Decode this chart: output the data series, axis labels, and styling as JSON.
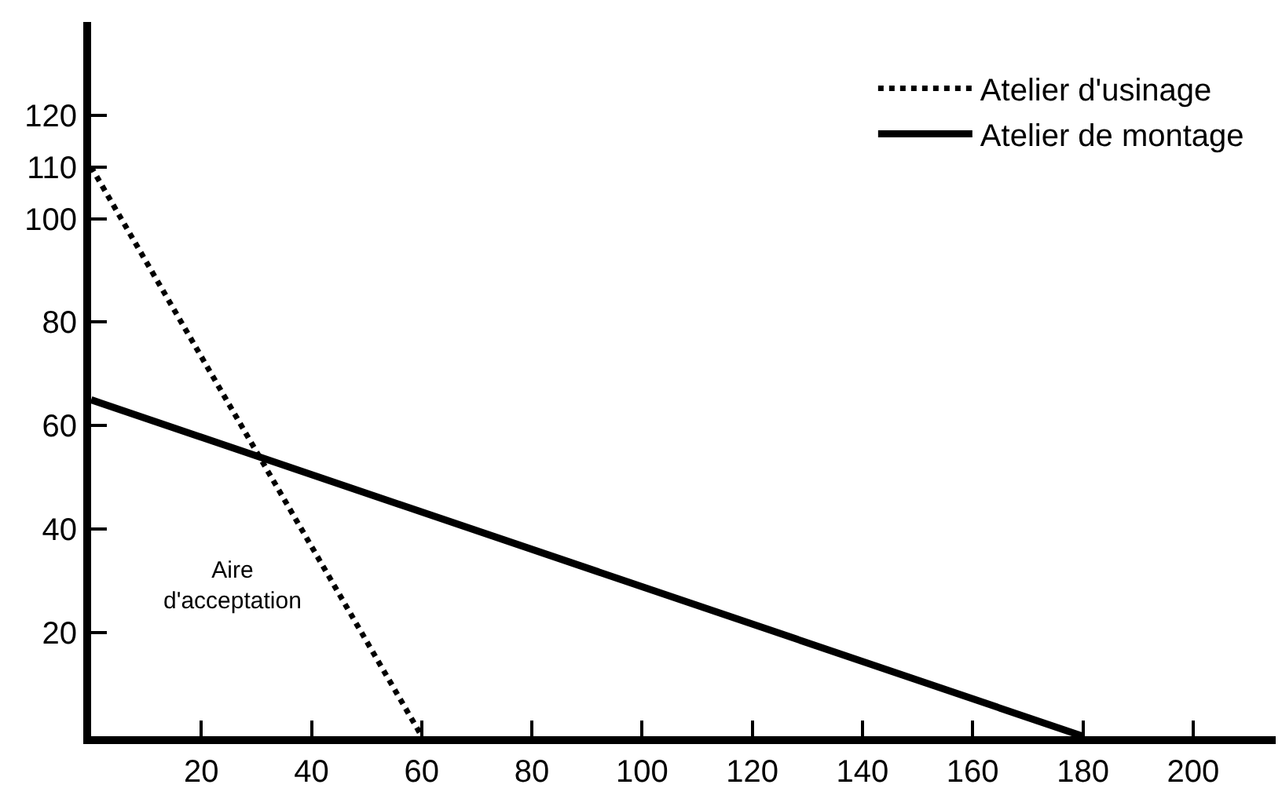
{
  "chart_data": {
    "type": "line",
    "series": [
      {
        "name": "Atelier d'usinage",
        "color": "#000000",
        "x": [
          0,
          60
        ],
        "values": [
          110,
          0
        ],
        "line_style": "dotted"
      },
      {
        "name": "Atelier de montage",
        "color": "#000000",
        "x": [
          0,
          180
        ],
        "values": [
          65,
          0
        ],
        "line_style": "solid"
      }
    ],
    "xlim": [
      0,
      215
    ],
    "ylim": [
      0,
      138
    ],
    "xticks": [
      20,
      40,
      60,
      80,
      100,
      120,
      140,
      160,
      180,
      200
    ],
    "yticks": [
      20,
      40,
      60,
      80,
      100,
      110,
      120
    ],
    "annotations": [
      "Aire\nd'acceptation"
    ],
    "legend": "top right",
    "marker": "none"
  }
}
